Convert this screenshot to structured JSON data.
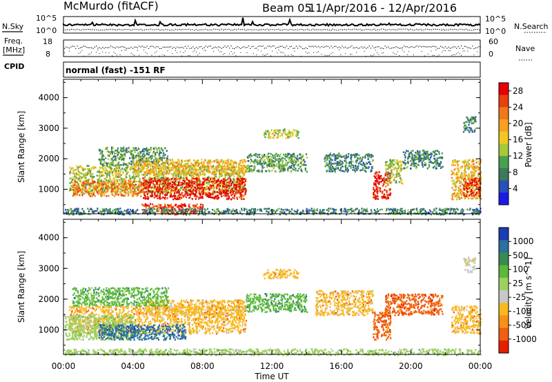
{
  "header": {
    "station": "McMurdo (fitACF)",
    "beam": "Beam 05",
    "dates": "11/Apr/2016 - 12/Apr/2016"
  },
  "param_panel": {
    "nsky_label": "N.Sky",
    "nsearch_label": "N.Search",
    "nsky_ticks": [
      "10^5",
      "10^0"
    ],
    "nsearch_ticks": [
      "10^5",
      "10^0"
    ],
    "freq_label_line1": "Freq.",
    "freq_label_line2": "[MHz]",
    "freq_ticks": [
      "18",
      "8"
    ],
    "nave_label": "Nave",
    "nave_ticks": [
      "60",
      "0"
    ],
    "cpid_label": "CPID",
    "cpid_text": "normal (fast) -151 RF"
  },
  "chart_data": [
    {
      "type": "heatmap",
      "panel": "power",
      "ylabel": "Slant Range [km]",
      "xlabel": "",
      "x_tick_labels": [
        "00:00",
        "04:00",
        "08:00",
        "12:00",
        "16:00",
        "20:00",
        "00:00"
      ],
      "y_tick_labels": [
        "1000",
        "2000",
        "3000",
        "4000"
      ],
      "ylim": [
        200,
        4600
      ],
      "xlim_hours": [
        0,
        24
      ],
      "colorbar": {
        "label": "Power [dB]",
        "tick_labels": [
          "4",
          "8",
          "12",
          "16",
          "20",
          "24",
          "28"
        ],
        "range": [
          0,
          30
        ],
        "colors": [
          "#1a1ae6",
          "#2850b8",
          "#3c7a5a",
          "#4aa050",
          "#a8c83a",
          "#f0c820",
          "#f8a020",
          "#f07818",
          "#e84010",
          "#e60000"
        ]
      },
      "regions": [
        {
          "t": [
            0.3,
            10.5
          ],
          "r": [
            900,
            1800
          ],
          "value": 14
        },
        {
          "t": [
            4.5,
            10.5
          ],
          "r": [
            700,
            1400
          ],
          "value": 28
        },
        {
          "t": [
            0.5,
            4.5
          ],
          "r": [
            800,
            1300
          ],
          "value": 22
        },
        {
          "t": [
            2.0,
            6.0
          ],
          "r": [
            1800,
            2400
          ],
          "value": 10
        },
        {
          "t": [
            4.0,
            10.5
          ],
          "r": [
            1500,
            2000
          ],
          "value": 18
        },
        {
          "t": [
            4.5,
            8.0
          ],
          "r": [
            200,
            550
          ],
          "value": 26
        },
        {
          "t": [
            0.0,
            24.0
          ],
          "r": [
            200,
            400
          ],
          "value": 8
        },
        {
          "t": [
            10.5,
            14.0
          ],
          "r": [
            1600,
            2200
          ],
          "value": 10
        },
        {
          "t": [
            11.5,
            13.5
          ],
          "r": [
            2700,
            3000
          ],
          "value": 14
        },
        {
          "t": [
            15.0,
            17.8
          ],
          "r": [
            1600,
            2200
          ],
          "value": 8
        },
        {
          "t": [
            17.8,
            18.8
          ],
          "r": [
            700,
            1600
          ],
          "value": 28
        },
        {
          "t": [
            18.5,
            19.5
          ],
          "r": [
            1200,
            2000
          ],
          "value": 14
        },
        {
          "t": [
            19.5,
            21.8
          ],
          "r": [
            1700,
            2300
          ],
          "value": 8
        },
        {
          "t": [
            22.3,
            24.0
          ],
          "r": [
            700,
            2000
          ],
          "value": 18
        },
        {
          "t": [
            23.0,
            24.0
          ],
          "r": [
            800,
            1400
          ],
          "value": 26
        },
        {
          "t": [
            23.0,
            23.7
          ],
          "r": [
            2900,
            3400
          ],
          "value": 8
        }
      ]
    },
    {
      "type": "heatmap",
      "panel": "velocity",
      "ylabel": "Slant Range [km]",
      "xlabel": "Time UT",
      "x_tick_labels": [
        "00:00",
        "04:00",
        "08:00",
        "12:00",
        "16:00",
        "20:00",
        "00:00"
      ],
      "y_tick_labels": [
        "1000",
        "2000",
        "3000",
        "4000"
      ],
      "ylim": [
        200,
        4600
      ],
      "xlim_hours": [
        0,
        24
      ],
      "colorbar": {
        "label": "Velocity [m s^-1]",
        "tick_labels": [
          "1000",
          "500",
          "100",
          "25",
          "-25",
          "-100",
          "-500",
          "-1000"
        ],
        "colors": [
          "#1a3cb4",
          "#2a70a0",
          "#3c8a50",
          "#5ab83a",
          "#9ed060",
          "#c8c8c8",
          "#f8b820",
          "#f89018",
          "#f06010",
          "#e61e00"
        ]
      },
      "regions": [
        {
          "t": [
            0.3,
            10.5
          ],
          "r": [
            900,
            1800
          ],
          "value": -100
        },
        {
          "t": [
            0.0,
            4.0
          ],
          "r": [
            700,
            1500
          ],
          "value": 25
        },
        {
          "t": [
            2.0,
            7.0
          ],
          "r": [
            700,
            1200
          ],
          "value": 500
        },
        {
          "t": [
            4.5,
            10.5
          ],
          "r": [
            1500,
            2000
          ],
          "value": -100
        },
        {
          "t": [
            0.5,
            6.0
          ],
          "r": [
            1800,
            2400
          ],
          "value": 100
        },
        {
          "t": [
            0.0,
            24.0
          ],
          "r": [
            200,
            400
          ],
          "value": 25
        },
        {
          "t": [
            10.5,
            14.0
          ],
          "r": [
            1600,
            2200
          ],
          "value": 100
        },
        {
          "t": [
            11.5,
            13.5
          ],
          "r": [
            2700,
            3000
          ],
          "value": -100
        },
        {
          "t": [
            14.5,
            17.8
          ],
          "r": [
            1500,
            2300
          ],
          "value": -100
        },
        {
          "t": [
            17.8,
            18.8
          ],
          "r": [
            700,
            1600
          ],
          "value": -500
        },
        {
          "t": [
            18.5,
            21.8
          ],
          "r": [
            1500,
            2200
          ],
          "value": -500
        },
        {
          "t": [
            22.3,
            24.0
          ],
          "r": [
            900,
            1800
          ],
          "value": -100
        },
        {
          "t": [
            23.0,
            23.7
          ],
          "r": [
            2900,
            3400
          ],
          "value": -25
        }
      ]
    }
  ]
}
